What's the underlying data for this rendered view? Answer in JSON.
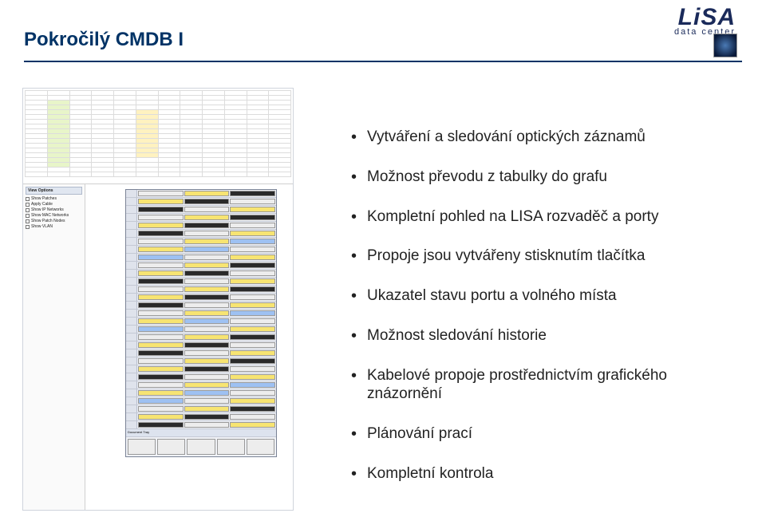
{
  "header": {
    "title": "Pokročilý CMDB I",
    "logo_line1": "LiSA",
    "logo_line2": "data center"
  },
  "sidebar_options": {
    "title": "View Options",
    "items": [
      "Show Patches",
      "Apply Cable",
      "Show IP Networks",
      "Show MAC Networks",
      "Show Patch Nodes",
      "Show VLAN"
    ]
  },
  "doc_tray_label": "Document Tray",
  "bullets": [
    "Vytváření a sledování optických záznamů",
    "Možnost převodu z tabulky do grafu",
    "Kompletní pohled na LISA rozvaděč a porty",
    "Propoje jsou vytvářeny stisknutím tlačítka",
    "Ukazatel stavu portu a volného místa",
    "Možnost sledování historie",
    "Kabelové propoje prostřednictvím grafického znázornění",
    "Plánování prací",
    "Kompletní kontrola"
  ],
  "grid": {
    "cols": 12,
    "rows": 18
  },
  "rack_units": 30,
  "colors": {
    "title": "#003366",
    "rule": "#003366",
    "logo": "#1a2a5a"
  }
}
